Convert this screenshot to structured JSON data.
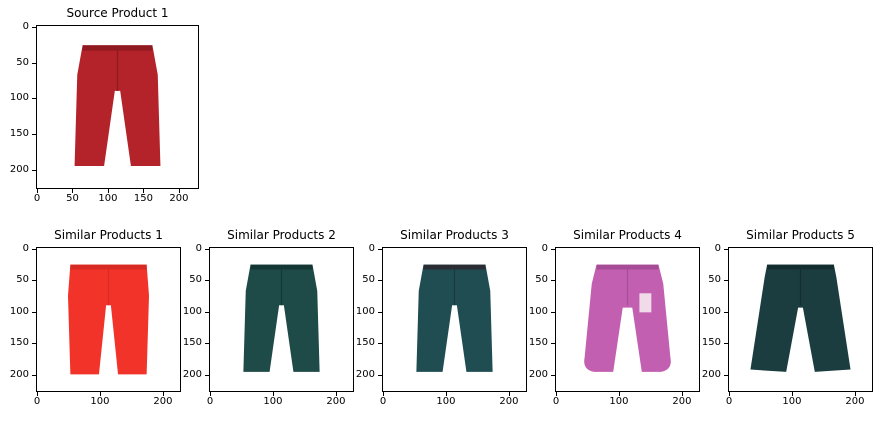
{
  "panels": [
    {
      "title": "Source Product 1",
      "color": "#b5232a",
      "shade": "#8f1a1f",
      "style": "slim"
    },
    {
      "title": "Similar Products 1",
      "color": "#f2332a",
      "shade": "#d62a22",
      "style": "straight"
    },
    {
      "title": "Similar Products 2",
      "color": "#1e4a48",
      "shade": "#143634",
      "style": "slim"
    },
    {
      "title": "Similar Products 3",
      "color": "#1f4d52",
      "shade": "#163a3e",
      "style": "belted"
    },
    {
      "title": "Similar Products 4",
      "color": "#c25fb0",
      "shade": "#a64c96",
      "style": "jogger"
    },
    {
      "title": "Similar Products 5",
      "color": "#1c3d3f",
      "shade": "#132d2f",
      "style": "wide"
    }
  ],
  "y_ticks": [
    "0",
    "50",
    "100",
    "150",
    "200"
  ],
  "x_ticks": [
    "0",
    "100",
    "200"
  ],
  "x_ticks_source": [
    "0",
    "50",
    "100",
    "150",
    "200"
  ]
}
